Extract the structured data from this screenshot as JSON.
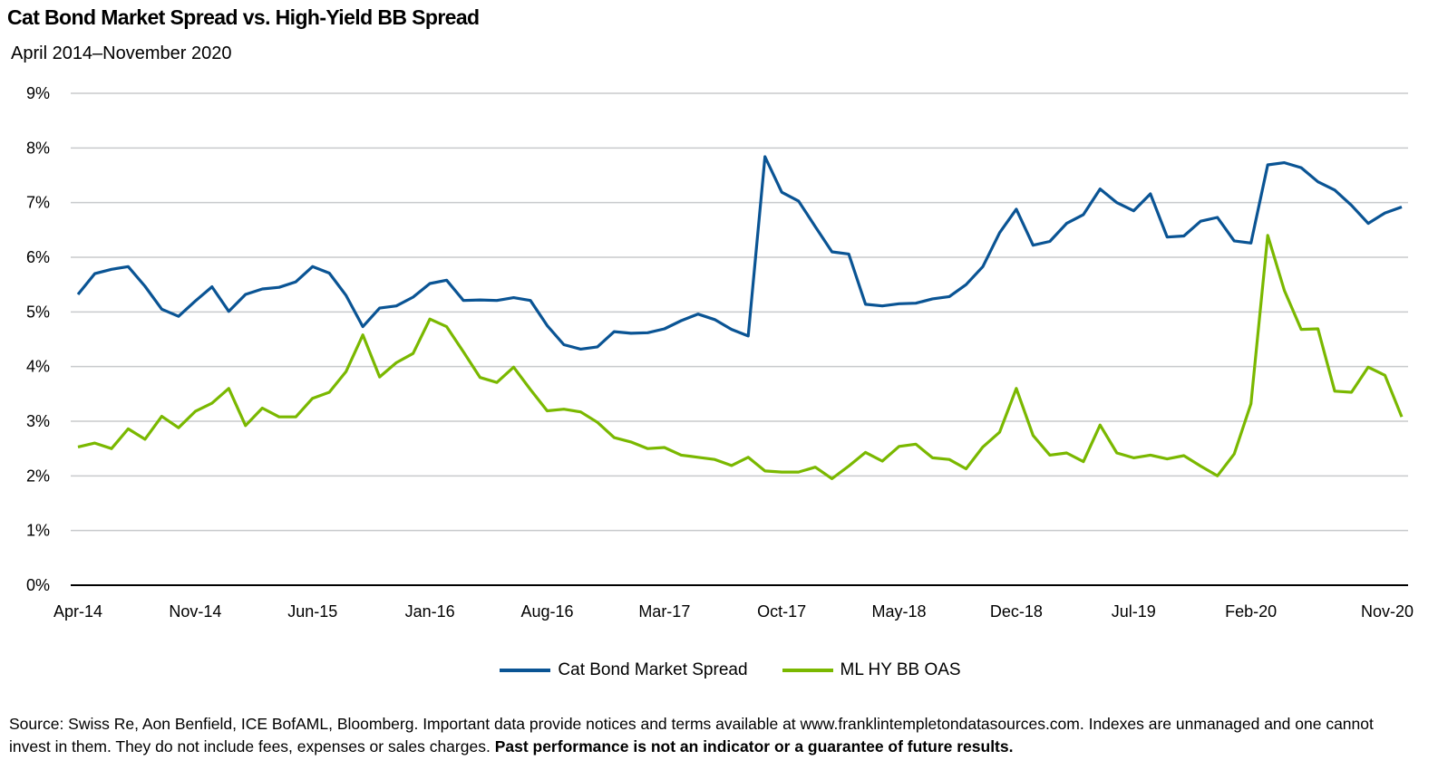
{
  "chart_data": {
    "type": "line",
    "title": "Cat Bond Market Spread vs. High-Yield BB Spread",
    "subtitle": "April 2014–November 2020",
    "xlabel": "",
    "ylabel": "",
    "ylim": [
      0,
      9
    ],
    "y_tick_labels": [
      "0%",
      "1%",
      "2%",
      "3%",
      "4%",
      "5%",
      "6%",
      "7%",
      "8%",
      "9%"
    ],
    "x_tick_labels": [
      "Apr-14",
      "Nov-14",
      "Jun-15",
      "Jan-16",
      "Aug-16",
      "Mar-17",
      "Oct-17",
      "May-18",
      "Dec-18",
      "Jul-19",
      "Feb-20",
      "Nov-20"
    ],
    "grid": true,
    "legend_position": "bottom",
    "categories": [
      "Apr-14",
      "May-14",
      "Jun-14",
      "Jul-14",
      "Aug-14",
      "Sep-14",
      "Oct-14",
      "Nov-14",
      "Dec-14",
      "Jan-15",
      "Feb-15",
      "Mar-15",
      "Apr-15",
      "May-15",
      "Jun-15",
      "Jul-15",
      "Aug-15",
      "Sep-15",
      "Oct-15",
      "Nov-15",
      "Dec-15",
      "Jan-16",
      "Feb-16",
      "Mar-16",
      "Apr-16",
      "May-16",
      "Jun-16",
      "Jul-16",
      "Aug-16",
      "Sep-16",
      "Oct-16",
      "Nov-16",
      "Dec-16",
      "Jan-17",
      "Feb-17",
      "Mar-17",
      "Apr-17",
      "May-17",
      "Jun-17",
      "Jul-17",
      "Aug-17",
      "Sep-17",
      "Oct-17",
      "Nov-17",
      "Dec-17",
      "Jan-18",
      "Feb-18",
      "Mar-18",
      "Apr-18",
      "May-18",
      "Jun-18",
      "Jul-18",
      "Aug-18",
      "Sep-18",
      "Oct-18",
      "Nov-18",
      "Dec-18",
      "Jan-19",
      "Feb-19",
      "Mar-19",
      "Apr-19",
      "May-19",
      "Jun-19",
      "Jul-19",
      "Aug-19",
      "Sep-19",
      "Oct-19",
      "Nov-19",
      "Dec-19",
      "Jan-20",
      "Feb-20",
      "Mar-20",
      "Apr-20",
      "May-20",
      "Jun-20",
      "Jul-20",
      "Aug-20",
      "Sep-20",
      "Oct-20",
      "Nov-20"
    ],
    "series": [
      {
        "name": "Cat Bond Market Spread",
        "color": "#0a5494",
        "values": [
          5.32,
          5.7,
          5.78,
          5.83,
          5.47,
          5.05,
          4.92,
          5.2,
          5.46,
          5.01,
          5.32,
          5.42,
          5.45,
          5.55,
          5.83,
          5.71,
          5.3,
          4.73,
          5.07,
          5.11,
          5.27,
          5.52,
          5.58,
          5.21,
          5.22,
          5.21,
          5.26,
          5.21,
          4.75,
          4.4,
          4.32,
          4.36,
          4.64,
          4.61,
          4.62,
          4.69,
          4.84,
          4.96,
          4.86,
          4.68,
          4.56,
          7.84,
          7.19,
          7.03,
          6.56,
          6.1,
          6.06,
          5.14,
          5.11,
          5.15,
          5.16,
          5.24,
          5.28,
          5.5,
          5.83,
          6.45,
          6.88,
          6.22,
          6.29,
          6.62,
          6.78,
          7.25,
          7.0,
          6.85,
          7.16,
          6.37,
          6.39,
          6.66,
          6.73,
          6.3,
          6.26,
          7.69,
          7.73,
          7.64,
          7.38,
          7.23,
          6.95,
          6.62,
          6.81,
          6.92
        ]
      },
      {
        "name": "ML HY BB OAS",
        "color": "#7ab800",
        "values": [
          2.53,
          2.6,
          2.5,
          2.86,
          2.67,
          3.09,
          2.88,
          3.18,
          3.33,
          3.6,
          2.92,
          3.24,
          3.08,
          3.08,
          3.42,
          3.53,
          3.91,
          4.58,
          3.81,
          4.07,
          4.24,
          4.87,
          4.73,
          4.27,
          3.8,
          3.71,
          3.99,
          3.58,
          3.19,
          3.22,
          3.17,
          2.98,
          2.7,
          2.62,
          2.5,
          2.52,
          2.38,
          2.34,
          2.3,
          2.19,
          2.34,
          2.09,
          2.07,
          2.07,
          2.16,
          1.95,
          2.18,
          2.43,
          2.27,
          2.54,
          2.58,
          2.33,
          2.3,
          2.13,
          2.53,
          2.8,
          3.6,
          2.74,
          2.38,
          2.42,
          2.26,
          2.93,
          2.42,
          2.33,
          2.38,
          2.31,
          2.37,
          2.18,
          2.0,
          2.4,
          3.32,
          6.4,
          5.39,
          4.68,
          4.69,
          3.55,
          3.53,
          3.99,
          3.84,
          3.08
        ]
      }
    ]
  },
  "source": {
    "text": "Source: Swiss Re, Aon Benfield, ICE BofAML, Bloomberg. Important data provide notices and terms available at www.franklintempletondatasources.com. Indexes are unmanaged and one cannot invest in them. They do not include fees, expenses or sales charges. ",
    "bold": "Past performance is not an indicator or a guarantee of future results."
  }
}
